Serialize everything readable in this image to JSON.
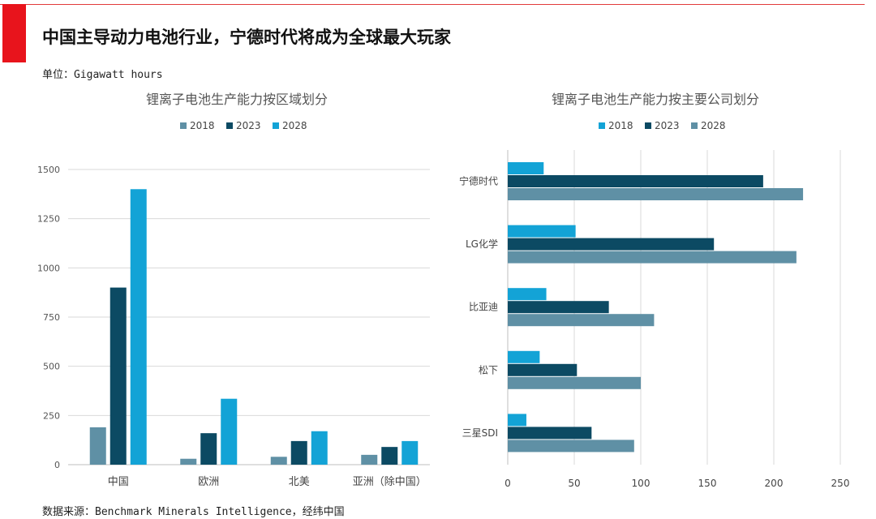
{
  "page": {
    "title": "中国主导动力电池行业，宁德时代将成为全球最大玩家",
    "unit": "单位：Gigawatt hours",
    "source": "数据来源：Benchmark Minerals Intelligence，经纬中国"
  },
  "colors": {
    "accent": "#e8141c",
    "s2018_left": "#5f90a5",
    "s2023": "#0c4a63",
    "s2028_left": "#13a3d6",
    "s2018_right": "#13a3d6",
    "s2028_right": "#5f90a5"
  },
  "chart_data": [
    {
      "type": "bar",
      "title": "锂离子电池生产能力按区域划分",
      "categories": [
        "中国",
        "欧洲",
        "北美",
        "亚洲（除中国）"
      ],
      "series": [
        {
          "name": "2018",
          "values": [
            190,
            30,
            40,
            50
          ]
        },
        {
          "name": "2023",
          "values": [
            900,
            160,
            120,
            90
          ]
        },
        {
          "name": "2028",
          "values": [
            1400,
            335,
            170,
            120
          ]
        }
      ],
      "ylim": [
        0,
        1500
      ],
      "yticks": [
        0,
        250,
        500,
        750,
        1000,
        1250,
        1500
      ],
      "xlabel": "",
      "ylabel": "",
      "legend": "top-center"
    },
    {
      "type": "bar",
      "orientation": "horizontal",
      "title": "锂离子电池生产能力按主要公司划分",
      "categories": [
        "宁德时代",
        "LG化学",
        "比亚迪",
        "松下",
        "三星SDI"
      ],
      "series": [
        {
          "name": "2018",
          "values": [
            27,
            51,
            29,
            24,
            14
          ]
        },
        {
          "name": "2023",
          "values": [
            192,
            155,
            76,
            52,
            63
          ]
        },
        {
          "name": "2028",
          "values": [
            222,
            217,
            110,
            100,
            95
          ]
        }
      ],
      "xlim": [
        0,
        250
      ],
      "xticks": [
        0,
        50,
        100,
        150,
        200,
        250
      ],
      "legend": "top-center"
    }
  ]
}
